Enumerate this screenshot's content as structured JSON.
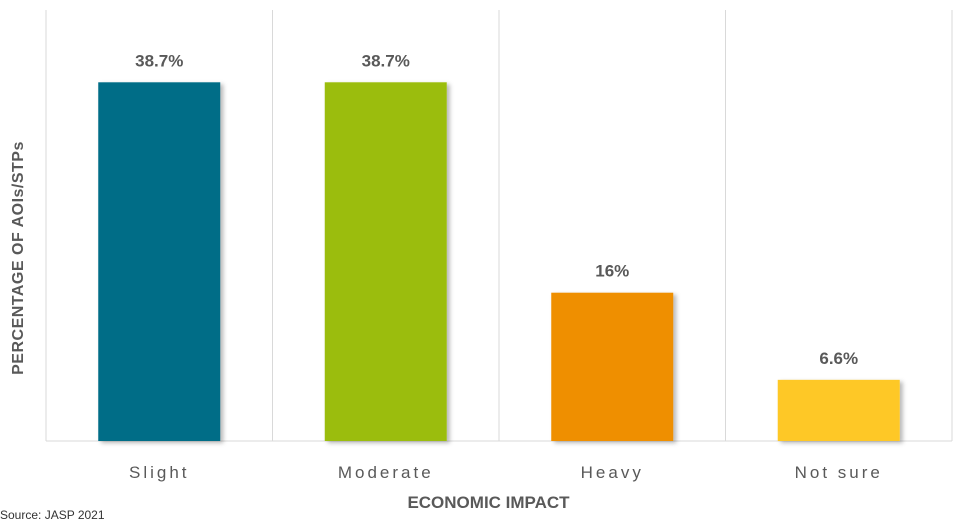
{
  "source": "Source: JASP 2021",
  "chart_data": {
    "type": "bar",
    "title": "",
    "xlabel": "ECONOMIC IMPACT",
    "ylabel": "PERCENTAGE OF AOIs/STPs",
    "categories": [
      "Slight",
      "Moderate",
      "Heavy",
      "Not sure"
    ],
    "values": [
      38.7,
      38.7,
      16,
      6.6
    ],
    "data_labels": [
      "38.7%",
      "38.7%",
      "16%",
      "6.6%"
    ],
    "colors": [
      "#006d87",
      "#9bbd0f",
      "#ef8f00",
      "#fec827"
    ],
    "ylim": [
      0,
      46.5
    ],
    "grid": "vertical separators",
    "legend": "none"
  }
}
